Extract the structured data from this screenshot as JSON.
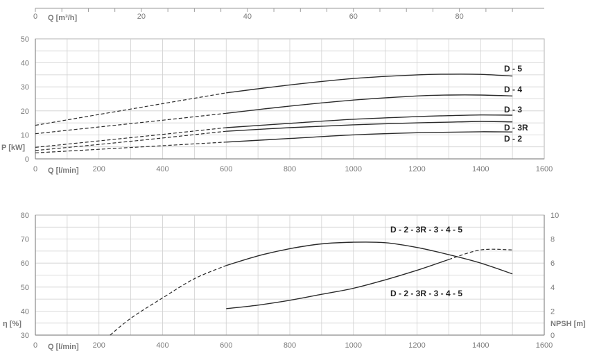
{
  "chart_data": [
    {
      "type": "line",
      "title": "",
      "top_axis": {
        "label": "Q [m³/h]",
        "range": [
          0,
          96
        ],
        "ticks": [
          "0",
          "20",
          "40",
          "60",
          "80"
        ],
        "tick_values": [
          0,
          20,
          40,
          60,
          80
        ]
      },
      "xlabel": "Q [l/min]",
      "xlim": [
        0,
        1600
      ],
      "x_ticks": [
        "0",
        "200",
        "400",
        "600",
        "800",
        "1000",
        "1200",
        "1400",
        "1600"
      ],
      "ylabel": "P [kW]",
      "ylim": [
        0,
        50
      ],
      "y_ticks": [
        "0",
        "10",
        "20",
        "30",
        "40",
        "50"
      ],
      "grid": true,
      "series": [
        {
          "name": "D - 5",
          "solid_from": 600,
          "x": [
            0,
            200,
            400,
            600,
            800,
            1000,
            1200,
            1300,
            1400,
            1500
          ],
          "y": [
            14,
            18.5,
            23,
            27.5,
            30.8,
            33.5,
            35,
            35.3,
            35.2,
            34.5
          ]
        },
        {
          "name": "D - 4",
          "solid_from": 600,
          "x": [
            0,
            200,
            400,
            600,
            800,
            1000,
            1200,
            1300,
            1400,
            1500
          ],
          "y": [
            10.5,
            13.3,
            16.1,
            19,
            22,
            24.5,
            26.2,
            26.6,
            26.6,
            26.2
          ]
        },
        {
          "name": "D - 3",
          "solid_from": 600,
          "x": [
            0,
            200,
            400,
            600,
            800,
            1000,
            1200,
            1300,
            1400,
            1500
          ],
          "y": [
            4.8,
            7.5,
            10.2,
            13,
            14.8,
            16.5,
            17.6,
            18,
            18.3,
            18.2
          ]
        },
        {
          "name": "D - 3R",
          "solid_from": 600,
          "x": [
            0,
            200,
            400,
            600,
            800,
            1000,
            1200,
            1300,
            1400,
            1500
          ],
          "y": [
            3.5,
            6,
            8.7,
            11.5,
            13,
            14.2,
            15,
            15.3,
            15.6,
            15.4
          ]
        },
        {
          "name": "D - 2",
          "solid_from": 600,
          "x": [
            0,
            200,
            400,
            600,
            800,
            1000,
            1200,
            1300,
            1400,
            1500
          ],
          "y": [
            2.5,
            4,
            5.5,
            7,
            8.5,
            10,
            10.9,
            11.1,
            11.3,
            11.2
          ]
        }
      ]
    },
    {
      "type": "line",
      "title": "",
      "xlabel": "Q [l/min]",
      "xlim": [
        0,
        1600
      ],
      "x_ticks": [
        "0",
        "200",
        "400",
        "600",
        "800",
        "1000",
        "1200",
        "1400",
        "1600"
      ],
      "ylabel": "η [%]",
      "ylim": [
        30,
        80
      ],
      "y_ticks": [
        "30",
        "40",
        "50",
        "60",
        "70",
        "80"
      ],
      "y2label": "NPSH [m]",
      "y2lim": [
        0,
        10
      ],
      "y2_ticks": [
        "0",
        "2",
        "4",
        "6",
        "8",
        "10"
      ],
      "grid": true,
      "series": [
        {
          "name": "D - 2 - 3R - 3 - 4 - 5",
          "axis": "left",
          "solid_from": 600,
          "x": [
            235,
            300,
            400,
            500,
            600,
            700,
            800,
            900,
            1000,
            1100,
            1200,
            1300,
            1400,
            1500
          ],
          "y": [
            30,
            37,
            45.5,
            53.5,
            59,
            63,
            66,
            68,
            68.7,
            68.5,
            66.5,
            63.5,
            60,
            55.5
          ]
        },
        {
          "name": "D - 2 - 3R - 3 - 4 - 5",
          "axis": "right",
          "solid_to": 1300,
          "x": [
            600,
            700,
            800,
            900,
            1000,
            1100,
            1200,
            1300,
            1400,
            1500
          ],
          "y": [
            2.2,
            2.5,
            2.9,
            3.4,
            3.9,
            4.6,
            5.4,
            6.3,
            7.1,
            7.1
          ]
        }
      ]
    }
  ]
}
